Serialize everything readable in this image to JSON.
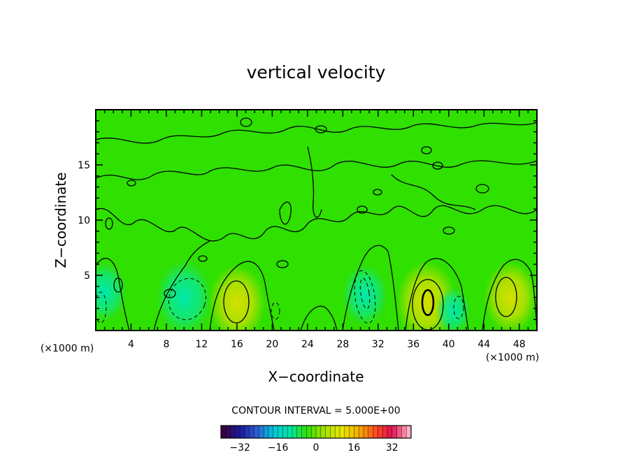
{
  "chart_data": {
    "type": "heatmap",
    "title": "vertical velocity",
    "xlabel": "X−coordinate",
    "ylabel": "Z−coordinate",
    "x_unit": "(×1000 m)",
    "y_unit": "(×1000 m)",
    "xlim": [
      0,
      50
    ],
    "ylim": [
      0,
      20
    ],
    "x_ticks": [
      "4",
      "8",
      "12",
      "16",
      "20",
      "24",
      "28",
      "32",
      "36",
      "40",
      "44",
      "48"
    ],
    "y_ticks": [
      "5",
      "10",
      "15"
    ],
    "contour_interval_text": "CONTOUR INTERVAL = 5.000E+00",
    "colorbar": {
      "range": [
        -40,
        40
      ],
      "ticks": [
        "−32",
        "−16",
        "0",
        "16",
        "32"
      ],
      "colors": [
        "#3a0040",
        "#1a1a9a",
        "#2f5fd0",
        "#00c8d8",
        "#00e6a0",
        "#33e000",
        "#a8e000",
        "#e8e800",
        "#f0b000",
        "#ff5020",
        "#e01050",
        "#ffb0c0"
      ]
    },
    "background_color": "#2fe000",
    "features": [
      {
        "x": 16,
        "z": 2.5,
        "w": 3.2,
        "value": 12
      },
      {
        "x": 37.5,
        "z": 2.6,
        "w": 3.4,
        "value": 16
      },
      {
        "x": 47,
        "z": 3,
        "w": 3,
        "value": 12
      },
      {
        "x": 1,
        "z": 3.5,
        "w": 2.5,
        "value": -9
      },
      {
        "x": 10,
        "z": 3,
        "w": 3.2,
        "value": -9
      },
      {
        "x": 30.5,
        "z": 3.2,
        "w": 2.6,
        "value": -12
      },
      {
        "x": 40.5,
        "z": 1.8,
        "w": 2,
        "value": -6
      }
    ]
  }
}
